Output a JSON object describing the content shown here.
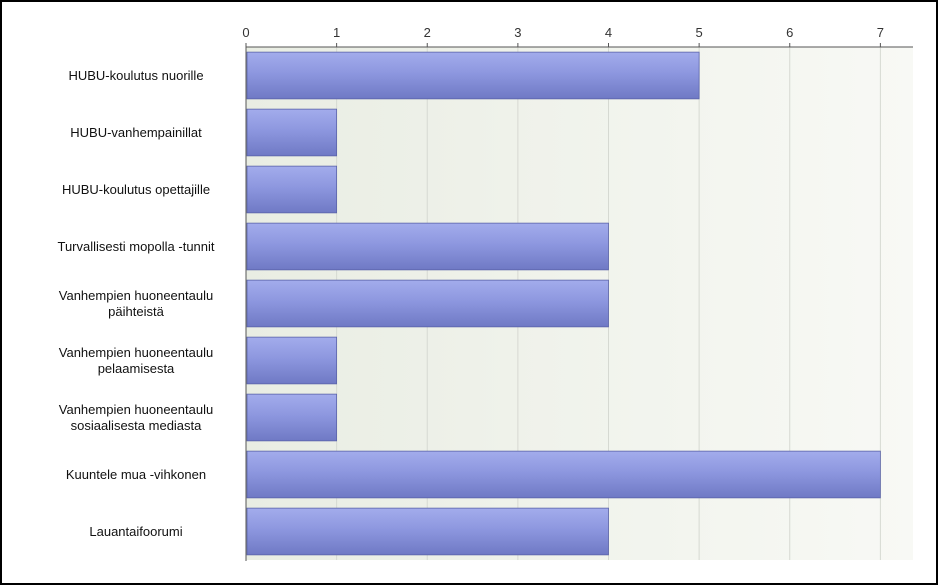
{
  "chart_data": {
    "type": "bar",
    "orientation": "horizontal",
    "title": "",
    "xlabel": "",
    "ylabel": "",
    "xlim": [
      0,
      7.36
    ],
    "x_ticks": [
      "0",
      "1",
      "2",
      "3",
      "4",
      "5",
      "6",
      "7"
    ],
    "x_axis_position": "top",
    "grid": true,
    "legend": "none",
    "bar_color": "#8a94dc",
    "plot_background": "#f3f5ef",
    "categories": [
      [
        "HUBU-koulutus nuorille"
      ],
      [
        "HUBU-vanhempainillat"
      ],
      [
        "HUBU-koulutus opettajille"
      ],
      [
        "Turvallisesti mopolla -tunnit"
      ],
      [
        "Vanhempien huoneentaulu",
        "päihteistä"
      ],
      [
        "Vanhempien huoneentaulu",
        "pelaamisesta"
      ],
      [
        "Vanhempien huoneentaulu",
        "sosiaalisesta mediasta"
      ],
      [
        "Kuuntele mua -vihkonen"
      ],
      [
        "Lauantaifoorumi"
      ]
    ],
    "values": [
      5,
      1,
      1,
      4,
      4,
      1,
      1,
      7,
      4
    ]
  }
}
